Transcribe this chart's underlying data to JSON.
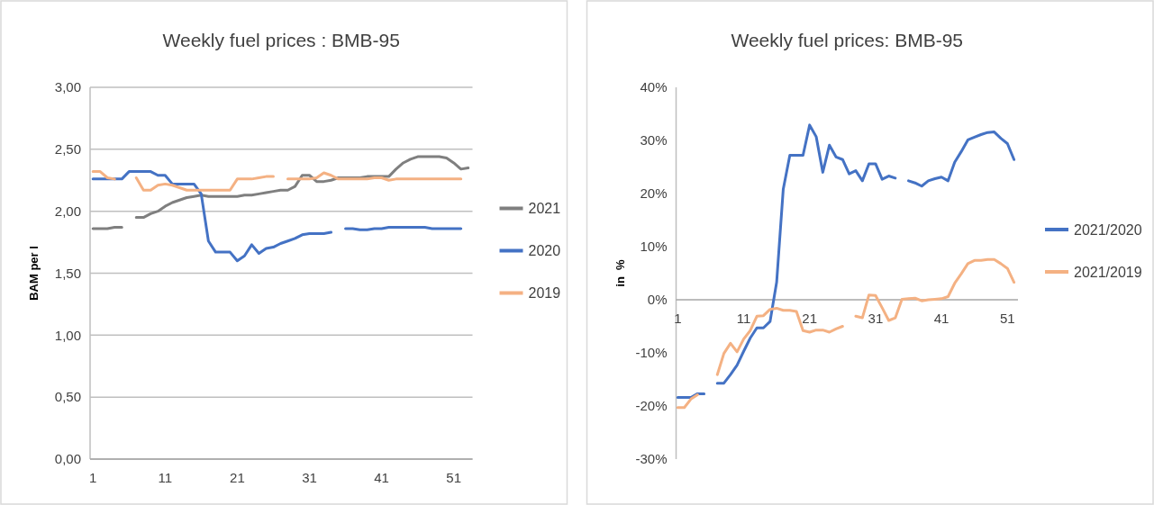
{
  "chart_data": [
    {
      "type": "line",
      "title": "Weekly fuel prices : BMB-95",
      "ylabel": "BAM per l",
      "x": [
        1,
        2,
        3,
        4,
        5,
        6,
        7,
        8,
        9,
        10,
        11,
        12,
        13,
        14,
        15,
        16,
        17,
        18,
        19,
        20,
        21,
        22,
        23,
        24,
        25,
        26,
        27,
        28,
        29,
        30,
        31,
        32,
        33,
        34,
        35,
        36,
        37,
        38,
        39,
        40,
        41,
        42,
        43,
        44,
        45,
        46,
        47,
        48,
        49,
        50,
        51,
        52,
        53
      ],
      "series": [
        {
          "name": "2021",
          "color": "#7f7f7f",
          "values": [
            1.86,
            1.86,
            1.86,
            1.87,
            1.87,
            null,
            1.95,
            1.95,
            1.98,
            2.0,
            2.04,
            2.07,
            2.09,
            2.11,
            2.12,
            2.13,
            2.12,
            2.12,
            2.12,
            2.12,
            2.12,
            2.13,
            2.13,
            2.14,
            2.15,
            2.16,
            2.17,
            2.17,
            2.2,
            2.29,
            2.29,
            2.24,
            2.24,
            2.25,
            2.27,
            2.27,
            2.27,
            2.27,
            2.28,
            2.28,
            2.28,
            2.28,
            2.34,
            2.39,
            2.42,
            2.44,
            2.44,
            2.44,
            2.44,
            2.43,
            2.39,
            2.34,
            2.35
          ]
        },
        {
          "name": "2020",
          "color": "#4472c4",
          "values": [
            2.26,
            2.26,
            2.26,
            2.26,
            2.26,
            2.32,
            2.32,
            2.32,
            2.32,
            2.29,
            2.29,
            2.22,
            2.22,
            2.22,
            2.22,
            2.14,
            1.76,
            1.67,
            1.67,
            1.67,
            1.6,
            1.64,
            1.73,
            1.66,
            1.7,
            1.71,
            1.74,
            1.76,
            1.78,
            1.81,
            1.82,
            1.82,
            1.82,
            1.83,
            null,
            1.86,
            1.86,
            1.85,
            1.85,
            1.86,
            1.86,
            1.87,
            1.87,
            1.87,
            1.87,
            1.87,
            1.87,
            1.86,
            1.86,
            1.86,
            1.86,
            1.86,
            null
          ]
        },
        {
          "name": "2019",
          "color": "#f4b183",
          "values": [
            2.32,
            2.32,
            2.27,
            2.26,
            null,
            null,
            2.27,
            2.17,
            2.17,
            2.21,
            2.22,
            2.21,
            2.19,
            2.17,
            2.17,
            2.17,
            2.17,
            2.17,
            2.17,
            2.17,
            2.26,
            2.26,
            2.26,
            2.27,
            2.28,
            2.28,
            null,
            2.26,
            2.26,
            2.26,
            2.26,
            2.27,
            2.31,
            2.29,
            2.26,
            2.26,
            2.26,
            2.26,
            2.26,
            2.27,
            2.27,
            2.25,
            2.26,
            2.26,
            2.26,
            2.26,
            2.26,
            2.26,
            2.26,
            2.26,
            2.26,
            2.26,
            null
          ]
        }
      ],
      "xlim": [
        0.6,
        53.6
      ],
      "xticks": [
        1,
        11,
        21,
        31,
        41,
        51
      ],
      "ylim": [
        0,
        3
      ],
      "yticks": [
        {
          "value": 0,
          "label": "0,00"
        },
        {
          "value": 0.5,
          "label": "0,50"
        },
        {
          "value": 1,
          "label": "1,00"
        },
        {
          "value": 1.5,
          "label": "1,50"
        },
        {
          "value": 2,
          "label": "2,00"
        },
        {
          "value": 2.5,
          "label": "2,50"
        },
        {
          "value": 3,
          "label": "3,00"
        }
      ],
      "grid": "y",
      "legend": "right",
      "line_style": "solid"
    },
    {
      "type": "line",
      "title": "Weekly fuel prices: BMB-95",
      "ylabel": "in  %",
      "x": [
        1,
        2,
        3,
        4,
        5,
        6,
        7,
        8,
        9,
        10,
        11,
        12,
        13,
        14,
        15,
        16,
        17,
        18,
        19,
        20,
        21,
        22,
        23,
        24,
        25,
        26,
        27,
        28,
        29,
        30,
        31,
        32,
        33,
        34,
        35,
        36,
        37,
        38,
        39,
        40,
        41,
        42,
        43,
        44,
        45,
        46,
        47,
        48,
        49,
        50,
        51,
        52
      ],
      "series": [
        {
          "name": "2021/2020",
          "color": "#4472c4",
          "values": [
            -18.4,
            -18.4,
            -18.4,
            -17.7,
            -17.7,
            null,
            -15.7,
            -15.7,
            -14.1,
            -12.3,
            -9.7,
            -7.2,
            -5.3,
            -5.3,
            -4.1,
            3.3,
            20.8,
            27.2,
            27.2,
            27.2,
            32.9,
            30.7,
            24.0,
            29.1,
            26.9,
            26.4,
            23.7,
            24.3,
            22.4,
            25.6,
            25.6,
            22.7,
            23.3,
            22.9,
            null,
            22.4,
            22.0,
            21.4,
            22.4,
            22.8,
            23.1,
            22.4,
            25.9,
            27.9,
            30.1,
            30.6,
            31.1,
            31.5,
            31.6,
            30.4,
            29.4,
            26.4
          ]
        },
        {
          "name": "2021/2019",
          "color": "#f4b183",
          "values": [
            -20.3,
            -20.3,
            -18.7,
            -17.9,
            null,
            null,
            -14.1,
            -10.1,
            -8.2,
            -9.8,
            -7.4,
            -5.8,
            -3.1,
            -3.0,
            -1.8,
            -1.6,
            -2.0,
            -2.0,
            -2.2,
            -5.8,
            -6.1,
            -5.7,
            -5.7,
            -6.1,
            -5.5,
            -5.0,
            null,
            -3.1,
            -3.4,
            0.9,
            0.8,
            -1.5,
            -3.9,
            -3.4,
            0.1,
            0.2,
            0.3,
            -0.2,
            0,
            0.1,
            0.2,
            0.6,
            3.1,
            4.9,
            6.8,
            7.4,
            7.4,
            7.6,
            7.6,
            6.8,
            5.9,
            3.3
          ]
        }
      ],
      "xlim": [
        0.75,
        52.6
      ],
      "xticks": [
        1,
        11,
        21,
        31,
        41,
        51
      ],
      "ylim": [
        -30,
        40
      ],
      "yticks": [
        {
          "value": -30,
          "label": "-30%"
        },
        {
          "value": -20,
          "label": "-20%"
        },
        {
          "value": -10,
          "label": "-10%"
        },
        {
          "value": 0,
          "label": "0%"
        },
        {
          "value": 10,
          "label": "10%"
        },
        {
          "value": 20,
          "label": "20%"
        },
        {
          "value": 30,
          "label": "30%"
        },
        {
          "value": 40,
          "label": "40%"
        }
      ],
      "legend": "right",
      "line_style": "solid"
    }
  ]
}
